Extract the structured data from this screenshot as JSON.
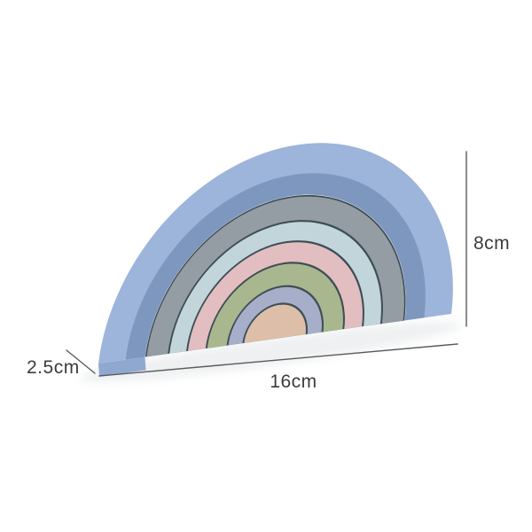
{
  "dimensions": {
    "height": "8cm",
    "width": "16cm",
    "depth": "2.5cm"
  },
  "toy": {
    "type": "rainbow-stacker",
    "pieces": 7,
    "gap_color": "#3E4E55",
    "side_color": "#8EA8D0",
    "arcs": [
      {
        "name": "blue",
        "color": "#9DB4DB",
        "outer": 201,
        "inner": 148,
        "shade_outer": 170,
        "shade": "#7E97BF"
      },
      {
        "name": "gray",
        "color": "#949CA4",
        "outer": 146,
        "inner": 122
      },
      {
        "name": "light-blue",
        "color": "#C1D5DB",
        "outer": 120,
        "inner": 101
      },
      {
        "name": "pink",
        "color": "#E2BEC1",
        "outer": 99,
        "inner": 79
      },
      {
        "name": "green",
        "color": "#A8B78E",
        "outer": 77,
        "inner": 55
      },
      {
        "name": "lavender",
        "color": "#A6AECA",
        "outer": 53,
        "inner": 37
      },
      {
        "name": "beige",
        "color": "#DDBEA8",
        "outer": 35,
        "inner": 0
      }
    ]
  },
  "style": {
    "background": "#FFFFFF",
    "line_color": "#5A5A5A",
    "text_color": "#3C3C3C",
    "shadow_color": "#9AA4AD"
  }
}
